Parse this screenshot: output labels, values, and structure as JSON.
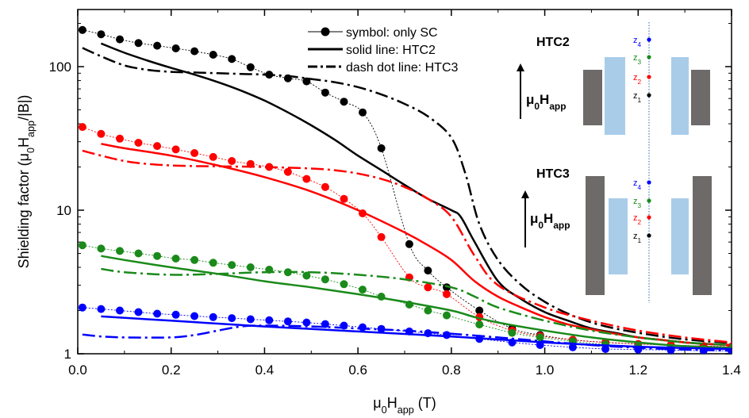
{
  "chart_data": {
    "type": "line",
    "xlabel": "μ0Happ (T)",
    "ylabel": "Shielding factor (μ0Happ/|B|)",
    "xlim": [
      0,
      1.4
    ],
    "ylim": [
      1,
      250
    ],
    "y_scale": "log",
    "x_ticks": [
      "0.0",
      "0.2",
      "0.4",
      "0.6",
      "0.8",
      "1.0",
      "1.2",
      "1.4"
    ],
    "x_tick_values": [
      0,
      0.2,
      0.4,
      0.6,
      0.8,
      1.0,
      1.2,
      1.4
    ],
    "y_ticks": [
      "1",
      "10",
      "100"
    ],
    "y_tick_values": [
      1,
      10,
      100
    ],
    "legend": {
      "placement": "top-center",
      "entries": [
        {
          "label": "symbol: only SC",
          "style": "symbol"
        },
        {
          "label": "solid line: HTC2",
          "style": "solid"
        },
        {
          "label": "dash dot line: HTC3",
          "style": "dashdot"
        }
      ]
    },
    "series_colors": {
      "z1": "#000000",
      "z2": "#ff0000",
      "z3": "#1a8a1a",
      "z4": "#0000ff"
    },
    "symbol_x": [
      0.01,
      0.05,
      0.09,
      0.13,
      0.17,
      0.21,
      0.25,
      0.29,
      0.33,
      0.37,
      0.41,
      0.45,
      0.49,
      0.53,
      0.57,
      0.61,
      0.65,
      0.71,
      0.75,
      0.79,
      0.86,
      0.93,
      0.99,
      1.06,
      1.13,
      1.2,
      1.27,
      1.34,
      1.4
    ],
    "series": [
      {
        "key": "z1",
        "kind": "symbol",
        "values": [
          180,
          168,
          155,
          146,
          140,
          134,
          128,
          121,
          113,
          99,
          88,
          83,
          79,
          66,
          57,
          48,
          27,
          5.8,
          3.8,
          2.9,
          2.0,
          1.5,
          1.35,
          1.25,
          1.2,
          1.17,
          1.15,
          1.13,
          1.12
        ]
      },
      {
        "key": "z2",
        "kind": "symbol",
        "values": [
          38,
          34,
          31.5,
          29.5,
          28,
          26.5,
          25,
          23.5,
          22,
          21,
          20,
          18.5,
          16.5,
          14.5,
          12,
          9.5,
          6.5,
          3.4,
          2.9,
          2.6,
          1.8,
          1.45,
          1.33,
          1.25,
          1.2,
          1.17,
          1.15,
          1.13,
          1.12
        ]
      },
      {
        "key": "z3",
        "kind": "symbol",
        "values": [
          5.7,
          5.4,
          5.2,
          5.0,
          4.8,
          4.6,
          4.5,
          4.3,
          4.15,
          4.0,
          3.85,
          3.7,
          3.5,
          3.3,
          3.05,
          2.8,
          2.5,
          2.2,
          2.0,
          1.85,
          1.6,
          1.4,
          1.3,
          1.22,
          1.16,
          1.12,
          1.1,
          1.08,
          1.07
        ]
      },
      {
        "key": "z4",
        "kind": "symbol",
        "values": [
          2.1,
          2.05,
          2.0,
          1.95,
          1.9,
          1.87,
          1.83,
          1.8,
          1.77,
          1.74,
          1.71,
          1.68,
          1.65,
          1.61,
          1.57,
          1.53,
          1.49,
          1.43,
          1.39,
          1.35,
          1.27,
          1.2,
          1.15,
          1.11,
          1.08,
          1.07,
          1.06,
          1.05,
          1.05
        ]
      },
      {
        "key": "z1",
        "kind": "solid",
        "x": [
          0.05,
          0.1,
          0.15,
          0.2,
          0.25,
          0.3,
          0.35,
          0.4,
          0.45,
          0.5,
          0.55,
          0.6,
          0.65,
          0.7,
          0.75,
          0.8,
          0.82,
          0.85,
          0.9,
          0.95,
          1.0,
          1.05,
          1.1,
          1.15,
          1.2,
          1.25,
          1.3,
          1.35,
          1.4
        ],
        "values": [
          145,
          125,
          110,
          98,
          88,
          78,
          68,
          58,
          48,
          39,
          31,
          24,
          19,
          15,
          12,
          10,
          9,
          6,
          3.2,
          2.4,
          1.95,
          1.7,
          1.5,
          1.4,
          1.3,
          1.25,
          1.2,
          1.17,
          1.15
        ]
      },
      {
        "key": "z2",
        "kind": "solid",
        "x": [
          0.05,
          0.1,
          0.2,
          0.3,
          0.4,
          0.5,
          0.6,
          0.7,
          0.75,
          0.8,
          0.85,
          0.9,
          0.95,
          1.0,
          1.05,
          1.1,
          1.15,
          1.2,
          1.25,
          1.3,
          1.35,
          1.4
        ],
        "values": [
          29,
          27,
          24,
          20.5,
          17,
          13.5,
          10,
          7,
          5.7,
          4.5,
          3.2,
          2.5,
          2.1,
          1.8,
          1.6,
          1.48,
          1.38,
          1.3,
          1.25,
          1.2,
          1.17,
          1.15
        ]
      },
      {
        "key": "z3",
        "kind": "solid",
        "x": [
          0.05,
          0.1,
          0.2,
          0.3,
          0.4,
          0.5,
          0.6,
          0.7,
          0.8,
          0.85,
          0.9,
          1.0,
          1.1,
          1.2,
          1.3,
          1.4
        ],
        "values": [
          4.8,
          4.5,
          4.0,
          3.6,
          3.2,
          2.9,
          2.6,
          2.3,
          2.0,
          1.8,
          1.65,
          1.45,
          1.3,
          1.2,
          1.13,
          1.1
        ]
      },
      {
        "key": "z4",
        "kind": "solid",
        "x": [
          0.05,
          0.2,
          0.4,
          0.6,
          0.8,
          1.0,
          1.2,
          1.4
        ],
        "values": [
          1.82,
          1.7,
          1.55,
          1.43,
          1.32,
          1.2,
          1.12,
          1.08
        ]
      },
      {
        "key": "z1",
        "kind": "dashdot",
        "x": [
          0.01,
          0.05,
          0.1,
          0.15,
          0.2,
          0.25,
          0.3,
          0.35,
          0.4,
          0.45,
          0.5,
          0.55,
          0.6,
          0.65,
          0.7,
          0.75,
          0.8,
          0.83,
          0.86,
          0.9,
          0.95,
          1.0,
          1.05,
          1.1,
          1.15,
          1.2,
          1.25,
          1.3,
          1.35,
          1.4
        ],
        "values": [
          135,
          118,
          102,
          95,
          92,
          91,
          90,
          89,
          88,
          86,
          82,
          78,
          72,
          64,
          55,
          45,
          32,
          18,
          8,
          4.5,
          3.0,
          2.3,
          1.9,
          1.65,
          1.5,
          1.4,
          1.32,
          1.26,
          1.22,
          1.19
        ]
      },
      {
        "key": "z2",
        "kind": "dashdot",
        "x": [
          0.01,
          0.05,
          0.1,
          0.15,
          0.2,
          0.25,
          0.3,
          0.4,
          0.5,
          0.55,
          0.6,
          0.65,
          0.7,
          0.75,
          0.8,
          0.85,
          0.9,
          1.0,
          1.1,
          1.2,
          1.3,
          1.4
        ],
        "values": [
          26,
          24,
          22,
          21,
          20.5,
          20.3,
          20.2,
          20,
          19.5,
          19,
          18,
          16.5,
          14.5,
          12,
          9,
          4.8,
          3.0,
          2.1,
          1.7,
          1.45,
          1.3,
          1.2
        ]
      },
      {
        "key": "z3",
        "kind": "dashdot",
        "x": [
          0.05,
          0.1,
          0.2,
          0.3,
          0.4,
          0.5,
          0.6,
          0.7,
          0.8,
          0.85,
          0.9,
          1.0,
          1.1,
          1.2,
          1.3,
          1.4
        ],
        "values": [
          3.9,
          3.7,
          3.55,
          3.6,
          3.7,
          3.7,
          3.55,
          3.3,
          2.9,
          2.5,
          2.1,
          1.7,
          1.45,
          1.3,
          1.2,
          1.15
        ]
      },
      {
        "key": "z4",
        "kind": "dashdot",
        "x": [
          0.01,
          0.05,
          0.1,
          0.2,
          0.25,
          0.3,
          0.35,
          0.4,
          0.5,
          0.6,
          0.7,
          0.8,
          0.9,
          1.0,
          1.1,
          1.2,
          1.3,
          1.4
        ],
        "values": [
          1.36,
          1.32,
          1.3,
          1.3,
          1.35,
          1.45,
          1.55,
          1.57,
          1.55,
          1.5,
          1.45,
          1.38,
          1.3,
          1.22,
          1.15,
          1.1,
          1.07,
          1.05
        ]
      }
    ]
  },
  "insets": [
    {
      "title": "HTC2",
      "field_label": "μ0Happ",
      "z_labels": [
        "z4",
        "z3",
        "z2",
        "z1"
      ]
    },
    {
      "title": "HTC3",
      "field_label": "μ0Happ",
      "z_labels": [
        "z4",
        "z3",
        "z2",
        "z1"
      ]
    }
  ],
  "inset_colors": {
    "iron": "#6e6a6a",
    "superconductor": "#a9cce8",
    "axis": "#4a7fc0"
  }
}
